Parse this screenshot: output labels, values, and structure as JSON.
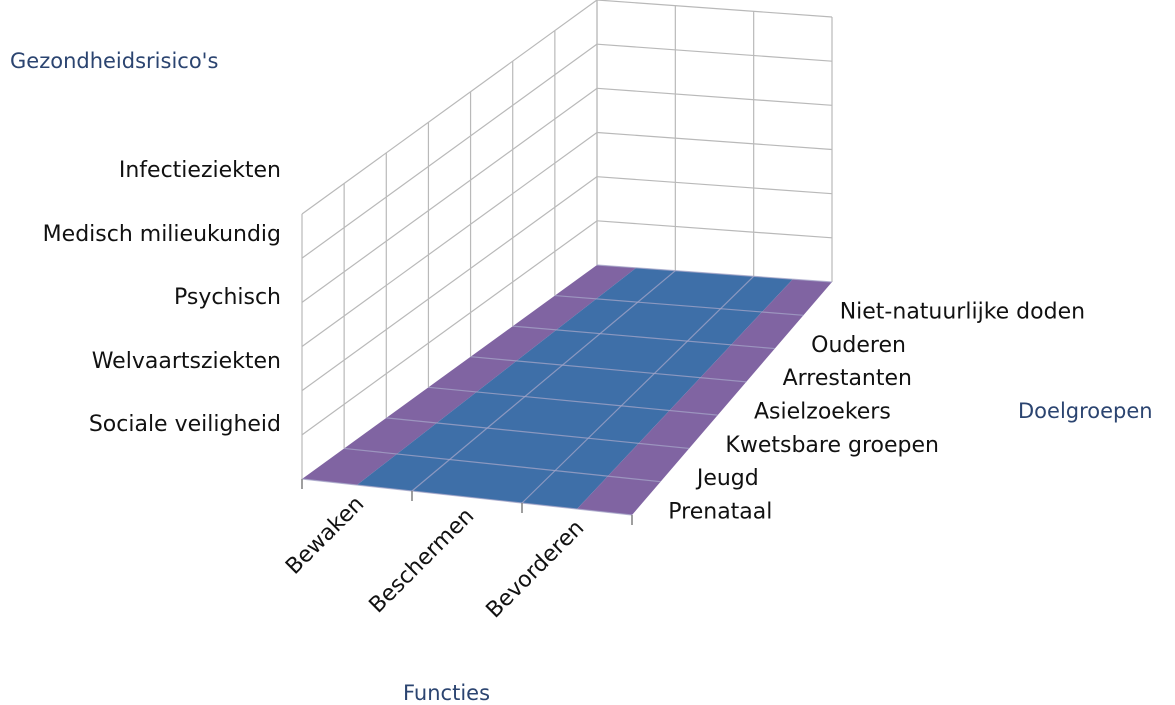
{
  "chart_data": {
    "type": "surface",
    "zlabel": "Gezondheidsrisico's",
    "ylabel": "Doelgroepen",
    "xlabel": "Functies",
    "x_categories": [
      "Bewaken",
      "Beschermen",
      "Bevorderen"
    ],
    "y_categories": [
      "Prenataal",
      "Jeugd",
      "Kwetsbare groepen",
      "Asielzoekers",
      "Arrestanten",
      "Ouderen",
      "Niet-natuurlijke doden"
    ],
    "z_categories": [
      "Sociale veiligheid",
      "Welvaartsziekten",
      "Psychisch",
      "Medisch milieukundig",
      "Infectieziekten"
    ],
    "colors": {
      "edge_band": "#8064a2",
      "center_band": "#3e6fa8",
      "grid": "#b9b9b9",
      "title": "#2b4470"
    }
  }
}
